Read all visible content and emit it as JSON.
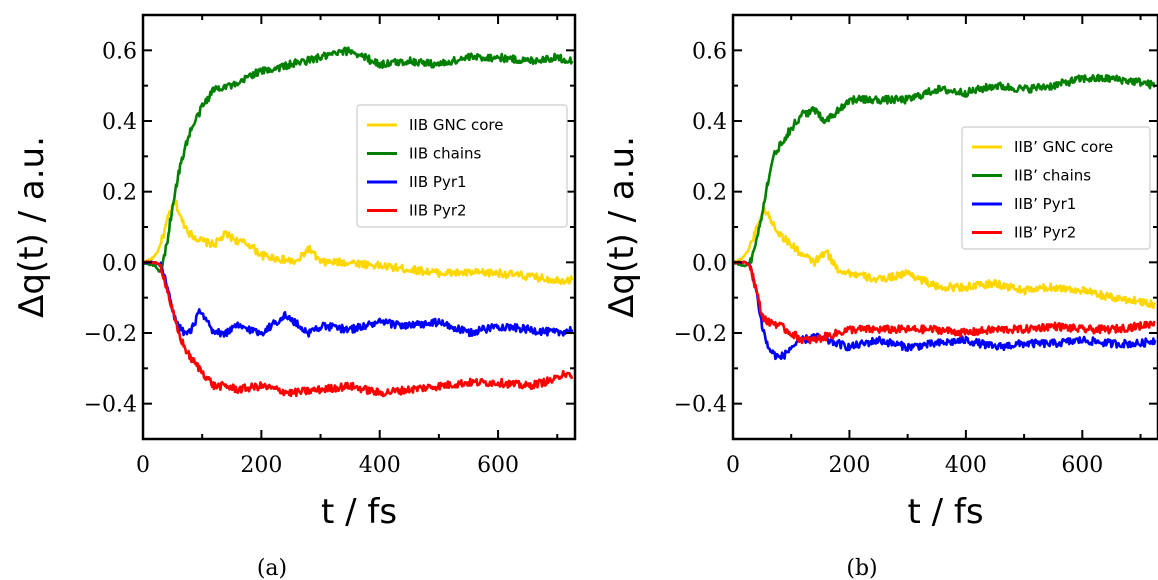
{
  "chart_data": [
    {
      "type": "line",
      "panel_label": "(a)",
      "xlabel": "t / fs",
      "ylabel": "Δq(t) / a.u.",
      "xlim": [
        0,
        730
      ],
      "ylim": [
        -0.5,
        0.7
      ],
      "xticks": [
        0,
        200,
        400,
        600
      ],
      "yticks": [
        -0.4,
        -0.2,
        0.0,
        0.2,
        0.4,
        0.6
      ],
      "ytick_labels": [
        "−0.4",
        "−0.2",
        "0.0",
        "0.2",
        "0.4",
        "0.6"
      ],
      "legend_position": "upper-right",
      "series": [
        {
          "name": "IIB GNC core",
          "color": "#ffd700",
          "x": [
            0,
            15,
            25,
            35,
            45,
            55,
            65,
            80,
            100,
            120,
            140,
            160,
            180,
            200,
            230,
            260,
            280,
            300,
            350,
            400,
            450,
            500,
            550,
            600,
            650,
            700,
            725
          ],
          "y": [
            0.0,
            0.01,
            0.03,
            0.08,
            0.14,
            0.17,
            0.12,
            0.08,
            0.06,
            0.05,
            0.08,
            0.06,
            0.05,
            0.02,
            0.01,
            0.0,
            0.04,
            0.0,
            0.0,
            -0.01,
            -0.02,
            -0.03,
            -0.03,
            -0.03,
            -0.04,
            -0.05,
            -0.05
          ]
        },
        {
          "name": "IIB chains",
          "color": "#008000",
          "x": [
            0,
            20,
            30,
            40,
            50,
            60,
            70,
            80,
            100,
            120,
            140,
            160,
            180,
            200,
            250,
            300,
            350,
            400,
            450,
            500,
            550,
            600,
            650,
            700,
            725
          ],
          "y": [
            0.0,
            -0.01,
            -0.03,
            0.05,
            0.16,
            0.25,
            0.32,
            0.37,
            0.44,
            0.49,
            0.5,
            0.5,
            0.53,
            0.54,
            0.56,
            0.58,
            0.6,
            0.56,
            0.57,
            0.56,
            0.58,
            0.58,
            0.57,
            0.58,
            0.57
          ]
        },
        {
          "name": "IIB Pyr1",
          "color": "#0000ff",
          "x": [
            0,
            20,
            30,
            40,
            50,
            60,
            70,
            80,
            90,
            95,
            100,
            120,
            140,
            160,
            200,
            240,
            280,
            300,
            350,
            400,
            450,
            500,
            550,
            600,
            650,
            700,
            725
          ],
          "y": [
            0.0,
            0.0,
            -0.01,
            -0.06,
            -0.14,
            -0.18,
            -0.2,
            -0.2,
            -0.16,
            -0.14,
            -0.15,
            -0.2,
            -0.2,
            -0.18,
            -0.2,
            -0.15,
            -0.2,
            -0.18,
            -0.19,
            -0.17,
            -0.18,
            -0.17,
            -0.2,
            -0.18,
            -0.19,
            -0.2,
            -0.19
          ]
        },
        {
          "name": "IIB Pyr2",
          "color": "#ff0000",
          "x": [
            0,
            20,
            30,
            40,
            50,
            60,
            70,
            80,
            100,
            120,
            140,
            160,
            200,
            250,
            300,
            350,
            400,
            450,
            500,
            550,
            600,
            650,
            700,
            710,
            725
          ],
          "y": [
            0.0,
            0.0,
            -0.01,
            -0.07,
            -0.14,
            -0.2,
            -0.24,
            -0.27,
            -0.31,
            -0.35,
            -0.35,
            -0.36,
            -0.35,
            -0.37,
            -0.36,
            -0.35,
            -0.37,
            -0.36,
            -0.35,
            -0.34,
            -0.34,
            -0.35,
            -0.33,
            -0.31,
            -0.33
          ]
        }
      ]
    },
    {
      "type": "line",
      "panel_label": "(b)",
      "xlabel": "t / fs",
      "ylabel": "Δq(t) / a.u.",
      "xlim": [
        0,
        730
      ],
      "ylim": [
        -0.5,
        0.7
      ],
      "xticks": [
        0,
        200,
        400,
        600
      ],
      "yticks": [
        -0.4,
        -0.2,
        0.0,
        0.2,
        0.4,
        0.6
      ],
      "ytick_labels": [
        "−0.4",
        "−0.2",
        "0.0",
        "0.2",
        "0.4",
        "0.6"
      ],
      "legend_position": "upper-right",
      "series": [
        {
          "name": "IIB’ GNC core",
          "color": "#ffd700",
          "x": [
            0,
            15,
            25,
            35,
            45,
            55,
            65,
            80,
            100,
            120,
            140,
            160,
            180,
            200,
            250,
            300,
            350,
            400,
            450,
            500,
            550,
            600,
            650,
            700,
            725
          ],
          "y": [
            0.0,
            0.01,
            0.03,
            0.07,
            0.12,
            0.15,
            0.12,
            0.08,
            0.05,
            0.02,
            0.0,
            0.03,
            -0.02,
            -0.03,
            -0.05,
            -0.03,
            -0.07,
            -0.07,
            -0.06,
            -0.08,
            -0.07,
            -0.08,
            -0.1,
            -0.11,
            -0.12
          ]
        },
        {
          "name": "IIB’ chains",
          "color": "#008000",
          "x": [
            0,
            20,
            30,
            40,
            50,
            60,
            70,
            80,
            100,
            120,
            140,
            160,
            200,
            250,
            300,
            350,
            400,
            450,
            500,
            550,
            600,
            650,
            700,
            725
          ],
          "y": [
            0.0,
            -0.01,
            0.0,
            0.06,
            0.14,
            0.23,
            0.3,
            0.33,
            0.38,
            0.42,
            0.43,
            0.4,
            0.46,
            0.46,
            0.46,
            0.49,
            0.48,
            0.5,
            0.49,
            0.5,
            0.52,
            0.52,
            0.51,
            0.5
          ]
        },
        {
          "name": "IIB’ Pyr1",
          "color": "#0000ff",
          "x": [
            0,
            20,
            30,
            40,
            50,
            60,
            70,
            80,
            90,
            100,
            120,
            140,
            160,
            200,
            250,
            300,
            350,
            400,
            450,
            500,
            550,
            600,
            650,
            700,
            725
          ],
          "y": [
            0.0,
            0.0,
            -0.01,
            -0.08,
            -0.18,
            -0.24,
            -0.26,
            -0.27,
            -0.26,
            -0.24,
            -0.22,
            -0.21,
            -0.22,
            -0.24,
            -0.22,
            -0.24,
            -0.23,
            -0.22,
            -0.24,
            -0.23,
            -0.23,
            -0.22,
            -0.23,
            -0.23,
            -0.22
          ]
        },
        {
          "name": "IIB’ Pyr2",
          "color": "#ff0000",
          "x": [
            0,
            20,
            30,
            40,
            50,
            60,
            70,
            80,
            100,
            120,
            140,
            160,
            200,
            250,
            300,
            350,
            400,
            450,
            500,
            550,
            600,
            650,
            700,
            725
          ],
          "y": [
            0.0,
            0.0,
            -0.01,
            -0.08,
            -0.15,
            -0.17,
            -0.17,
            -0.18,
            -0.2,
            -0.22,
            -0.22,
            -0.21,
            -0.19,
            -0.19,
            -0.19,
            -0.19,
            -0.2,
            -0.19,
            -0.19,
            -0.18,
            -0.19,
            -0.19,
            -0.18,
            -0.17
          ]
        }
      ]
    }
  ]
}
